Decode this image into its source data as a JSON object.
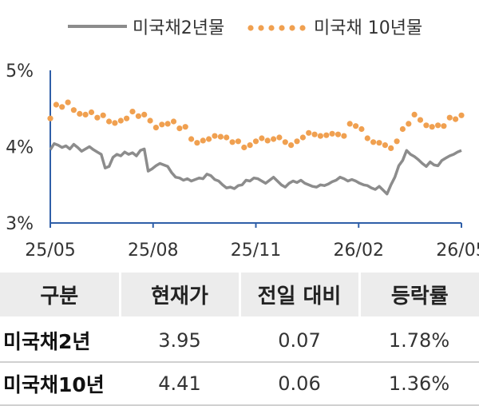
{
  "chart_data": {
    "type": "line",
    "legend_position": "top",
    "y_ticks": [
      "5%",
      "4%",
      "3%"
    ],
    "ylim": [
      3,
      5
    ],
    "x_ticks": [
      "25/05",
      "25/08",
      "25/11",
      "26/02",
      "26/05"
    ],
    "grid": false,
    "series": [
      {
        "name": "미국채2년물",
        "style": "solid",
        "color": "#8c8c8c",
        "values": [
          3.96,
          4.04,
          4.02,
          3.99,
          4.01,
          3.97,
          4.03,
          3.99,
          3.94,
          3.97,
          4.0,
          3.96,
          3.93,
          3.9,
          3.72,
          3.74,
          3.86,
          3.9,
          3.88,
          3.93,
          3.9,
          3.92,
          3.88,
          3.95,
          3.97,
          3.68,
          3.71,
          3.75,
          3.78,
          3.76,
          3.74,
          3.66,
          3.6,
          3.59,
          3.56,
          3.58,
          3.55,
          3.57,
          3.59,
          3.58,
          3.64,
          3.62,
          3.57,
          3.55,
          3.5,
          3.46,
          3.47,
          3.45,
          3.49,
          3.5,
          3.56,
          3.55,
          3.59,
          3.58,
          3.55,
          3.52,
          3.56,
          3.6,
          3.55,
          3.5,
          3.47,
          3.52,
          3.55,
          3.53,
          3.56,
          3.52,
          3.5,
          3.48,
          3.47,
          3.5,
          3.49,
          3.51,
          3.54,
          3.56,
          3.6,
          3.58,
          3.55,
          3.57,
          3.55,
          3.52,
          3.5,
          3.49,
          3.46,
          3.44,
          3.48,
          3.43,
          3.38,
          3.5,
          3.6,
          3.75,
          3.82,
          3.95,
          3.9,
          3.87,
          3.83,
          3.78,
          3.74,
          3.8,
          3.76,
          3.75,
          3.82,
          3.85,
          3.88,
          3.9,
          3.93,
          3.95
        ]
      },
      {
        "name": "미국채 10년물",
        "style": "dotted",
        "color": "#f0a050",
        "values": [
          4.37,
          4.55,
          4.52,
          4.58,
          4.48,
          4.43,
          4.42,
          4.45,
          4.38,
          4.41,
          4.33,
          4.31,
          4.34,
          4.37,
          4.46,
          4.4,
          4.42,
          4.34,
          4.25,
          4.29,
          4.3,
          4.33,
          4.24,
          4.26,
          4.1,
          4.05,
          4.08,
          4.1,
          4.14,
          4.13,
          4.12,
          4.06,
          4.07,
          3.99,
          4.02,
          4.07,
          4.11,
          4.08,
          4.1,
          4.12,
          4.06,
          4.02,
          4.07,
          4.12,
          4.18,
          4.16,
          4.14,
          4.15,
          4.17,
          4.16,
          4.14,
          4.3,
          4.27,
          4.23,
          4.11,
          4.06,
          4.05,
          4.02,
          3.98,
          4.07,
          4.23,
          4.3,
          4.42,
          4.35,
          4.28,
          4.26,
          4.28,
          4.27,
          4.38,
          4.36,
          4.41
        ]
      }
    ]
  },
  "table": {
    "headers": [
      "구분",
      "현재가",
      "전일 대비",
      "등락률"
    ],
    "rows": [
      [
        "미국채2년",
        "3.95",
        "0.07",
        "1.78%"
      ],
      [
        "미국채10년",
        "4.41",
        "0.06",
        "1.36%"
      ]
    ]
  }
}
